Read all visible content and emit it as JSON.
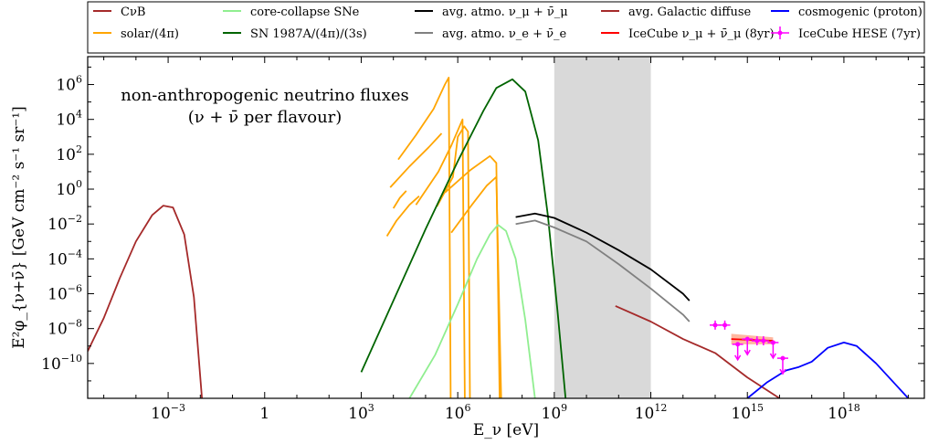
{
  "chart_data": {
    "type": "line",
    "title": "",
    "xlabel": "E_ν [eV]",
    "ylabel": "E²φ_{ν+ν̄} [GeV cm⁻² s⁻¹ sr⁻¹]",
    "xscale": "log",
    "yscale": "log",
    "xlim_log10": [
      -5.5,
      20.5
    ],
    "ylim_log10": [
      -12,
      7.6
    ],
    "x_ticks": [
      {
        "base": "10",
        "exp": "−3",
        "log10": -3
      },
      {
        "base": "1",
        "exp": "",
        "log10": 0
      },
      {
        "base": "10",
        "exp": "3",
        "log10": 3
      },
      {
        "base": "10",
        "exp": "6",
        "log10": 6
      },
      {
        "base": "10",
        "exp": "9",
        "log10": 9
      },
      {
        "base": "10",
        "exp": "12",
        "log10": 12
      },
      {
        "base": "10",
        "exp": "15",
        "log10": 15
      },
      {
        "base": "10",
        "exp": "18",
        "log10": 18
      }
    ],
    "y_ticks": [
      {
        "base": "10",
        "exp": "6",
        "log10": 6
      },
      {
        "base": "10",
        "exp": "4",
        "log10": 4
      },
      {
        "base": "10",
        "exp": "2",
        "log10": 2
      },
      {
        "base": "10",
        "exp": "0",
        "log10": 0
      },
      {
        "base": "10",
        "exp": "−2",
        "log10": -2
      },
      {
        "base": "10",
        "exp": "−4",
        "log10": -4
      },
      {
        "base": "10",
        "exp": "−6",
        "log10": -6
      },
      {
        "base": "10",
        "exp": "−8",
        "log10": -8
      },
      {
        "base": "10",
        "exp": "−10",
        "log10": -10
      }
    ],
    "annotation": [
      "non-anthropogenic neutrino fluxes",
      "(ν + ν̄ per flavour)"
    ],
    "shaded_band_log10_x": [
      9,
      12
    ],
    "shaded_color": "#d9d9d9",
    "legend": [
      {
        "label": "CνB",
        "color": "#a52a2a",
        "marker": "line"
      },
      {
        "label": "solar/(4π)",
        "color": "#ffa500",
        "marker": "line"
      },
      {
        "label": "core-collapse SNe",
        "color": "#90ee90",
        "marker": "line"
      },
      {
        "label": "SN 1987A/(4π)/(3s)",
        "color": "#006400",
        "marker": "line"
      },
      {
        "label": "avg. atmo. ν_μ + ν̄_μ",
        "color": "#000000",
        "marker": "line"
      },
      {
        "label": "avg. atmo. ν_e + ν̄_e",
        "color": "#808080",
        "marker": "line"
      },
      {
        "label": "avg. Galactic diffuse",
        "color": "#a52a2a",
        "marker": "line"
      },
      {
        "label": "IceCube ν_μ + ν̄_μ (8yr)",
        "color": "#ff0000",
        "marker": "line"
      },
      {
        "label": "cosmogenic (proton)",
        "color": "#0000ff",
        "marker": "line"
      },
      {
        "label": "IceCube HESE (7yr)",
        "color": "#ff00ff",
        "marker": "errorbar"
      }
    ],
    "series": [
      {
        "name": "CνB",
        "color": "#a52a2a",
        "points": [
          [
            -5.5,
            -9.3
          ],
          [
            -5.0,
            -7.4
          ],
          [
            -4.5,
            -5.1
          ],
          [
            -4.0,
            -3.0
          ],
          [
            -3.5,
            -1.5
          ],
          [
            -3.15,
            -0.95
          ],
          [
            -2.85,
            -1.05
          ],
          [
            -2.5,
            -2.6
          ],
          [
            -2.2,
            -6.2
          ],
          [
            -1.95,
            -12
          ]
        ]
      },
      {
        "name": "solar/(4π) line 1",
        "color": "#ffa500",
        "points": [
          [
            4.0,
            -1.1
          ],
          [
            4.2,
            -0.5
          ],
          [
            4.4,
            -0.1
          ]
        ]
      },
      {
        "name": "solar/(4π) line 2",
        "color": "#ffa500",
        "points": [
          [
            3.8,
            -2.7
          ],
          [
            4.1,
            -1.8
          ],
          [
            4.5,
            -0.9
          ],
          [
            4.8,
            -0.4
          ]
        ]
      },
      {
        "name": "solar/(4π) line 3",
        "color": "#ffa500",
        "points": [
          [
            3.9,
            0.1
          ],
          [
            4.5,
            1.3
          ],
          [
            5.1,
            2.4
          ],
          [
            5.5,
            3.2
          ]
        ]
      },
      {
        "name": "solar/(4π) pp",
        "color": "#ffa500",
        "points": [
          [
            4.15,
            1.7
          ],
          [
            4.7,
            3.1
          ],
          [
            5.25,
            4.6
          ],
          [
            5.6,
            6.0
          ],
          [
            5.72,
            6.4
          ],
          [
            5.78,
            -12
          ]
        ]
      },
      {
        "name": "solar/(4π) line 4",
        "color": "#ffa500",
        "points": [
          [
            4.7,
            -0.9
          ],
          [
            5.4,
            1.0
          ],
          [
            5.8,
            2.5
          ],
          [
            6.15,
            4.0
          ],
          [
            6.22,
            -12
          ]
        ]
      },
      {
        "name": "solar/(4π) line 5",
        "color": "#ffa500",
        "points": [
          [
            5.35,
            -1.0
          ],
          [
            5.85,
            0.7
          ],
          [
            6.0,
            3.0
          ],
          [
            6.2,
            3.6
          ],
          [
            6.32,
            3.3
          ],
          [
            6.38,
            -12
          ]
        ]
      },
      {
        "name": "solar/(4π) line 6",
        "color": "#ffa500",
        "points": [
          [
            5.8,
            -2.5
          ],
          [
            6.4,
            -1.0
          ],
          [
            6.9,
            0.2
          ],
          [
            7.2,
            0.7
          ],
          [
            7.35,
            -12
          ]
        ]
      },
      {
        "name": "solar/(4π) line 7",
        "color": "#ffa500",
        "points": [
          [
            5.6,
            -0.2
          ],
          [
            6.4,
            1.1
          ],
          [
            7.0,
            1.9
          ],
          [
            7.2,
            1.5
          ],
          [
            7.3,
            -12
          ]
        ]
      },
      {
        "name": "core-collapse SNe",
        "color": "#90ee90",
        "points": [
          [
            4.5,
            -12
          ],
          [
            5.3,
            -9.5
          ],
          [
            6.0,
            -6.6
          ],
          [
            6.6,
            -4.0
          ],
          [
            7.0,
            -2.6
          ],
          [
            7.25,
            -2.05
          ],
          [
            7.5,
            -2.4
          ],
          [
            7.8,
            -4.0
          ],
          [
            8.1,
            -7.5
          ],
          [
            8.4,
            -12
          ]
        ]
      },
      {
        "name": "SN 1987A/(4π)/(3s)",
        "color": "#006400",
        "points": [
          [
            3.0,
            -10.5
          ],
          [
            4.0,
            -6.4
          ],
          [
            5.0,
            -2.3
          ],
          [
            6.0,
            1.6
          ],
          [
            6.8,
            4.5
          ],
          [
            7.2,
            5.8
          ],
          [
            7.7,
            6.3
          ],
          [
            8.1,
            5.6
          ],
          [
            8.5,
            2.8
          ],
          [
            8.8,
            -1.5
          ],
          [
            9.1,
            -7.0
          ],
          [
            9.35,
            -12
          ]
        ]
      },
      {
        "name": "avg. atmo. ν_μ + ν̄_μ",
        "color": "#000000",
        "points": [
          [
            7.8,
            -1.6
          ],
          [
            8.4,
            -1.4
          ],
          [
            9.0,
            -1.65
          ],
          [
            10.0,
            -2.5
          ],
          [
            11.0,
            -3.5
          ],
          [
            12.0,
            -4.6
          ],
          [
            13.0,
            -6.0
          ],
          [
            13.2,
            -6.4
          ]
        ]
      },
      {
        "name": "avg. atmo. ν_e + ν̄_e",
        "color": "#808080",
        "points": [
          [
            7.8,
            -2.0
          ],
          [
            8.4,
            -1.8
          ],
          [
            9.0,
            -2.2
          ],
          [
            10.0,
            -3.0
          ],
          [
            11.0,
            -4.3
          ],
          [
            12.0,
            -5.7
          ],
          [
            13.0,
            -7.2
          ],
          [
            13.2,
            -7.6
          ]
        ]
      },
      {
        "name": "avg. Galactic diffuse",
        "color": "#a52a2a",
        "points": [
          [
            10.9,
            -6.7
          ],
          [
            12.0,
            -7.6
          ],
          [
            13.0,
            -8.6
          ],
          [
            14.0,
            -9.4
          ],
          [
            15.0,
            -10.8
          ],
          [
            16.0,
            -12
          ]
        ]
      },
      {
        "name": "cosmogenic (proton)",
        "color": "#0000ff",
        "points": [
          [
            15.0,
            -12
          ],
          [
            15.6,
            -11.1
          ],
          [
            16.2,
            -10.4
          ],
          [
            16.6,
            -10.2
          ],
          [
            17.0,
            -9.9
          ],
          [
            17.5,
            -9.1
          ],
          [
            18.0,
            -8.8
          ],
          [
            18.4,
            -9.0
          ],
          [
            19.0,
            -10.0
          ],
          [
            19.6,
            -11.2
          ],
          [
            20.0,
            -12
          ]
        ]
      }
    ],
    "icecube_band": {
      "label": "IceCube ν_μ + ν̄_μ (8yr)",
      "log10_x": [
        14.5,
        15.8
      ],
      "upper_log10": [
        -8.3,
        -8.5
      ],
      "lower_log10": [
        -8.9,
        -8.9
      ]
    },
    "hese_points": [
      {
        "x_log10": 14.0,
        "y_log10": -7.8,
        "type": "point"
      },
      {
        "x_log10": 14.3,
        "y_log10": -7.8,
        "type": "point"
      },
      {
        "x_log10": 14.7,
        "y_log10": -8.9,
        "type": "upper_limit"
      },
      {
        "x_log10": 15.0,
        "y_log10": -8.6,
        "type": "upper_limit"
      },
      {
        "x_log10": 15.3,
        "y_log10": -8.7,
        "type": "point"
      },
      {
        "x_log10": 15.5,
        "y_log10": -8.7,
        "type": "point"
      },
      {
        "x_log10": 15.8,
        "y_log10": -8.8,
        "type": "upper_limit"
      },
      {
        "x_log10": 16.1,
        "y_log10": -9.7,
        "type": "upper_limit"
      }
    ]
  }
}
